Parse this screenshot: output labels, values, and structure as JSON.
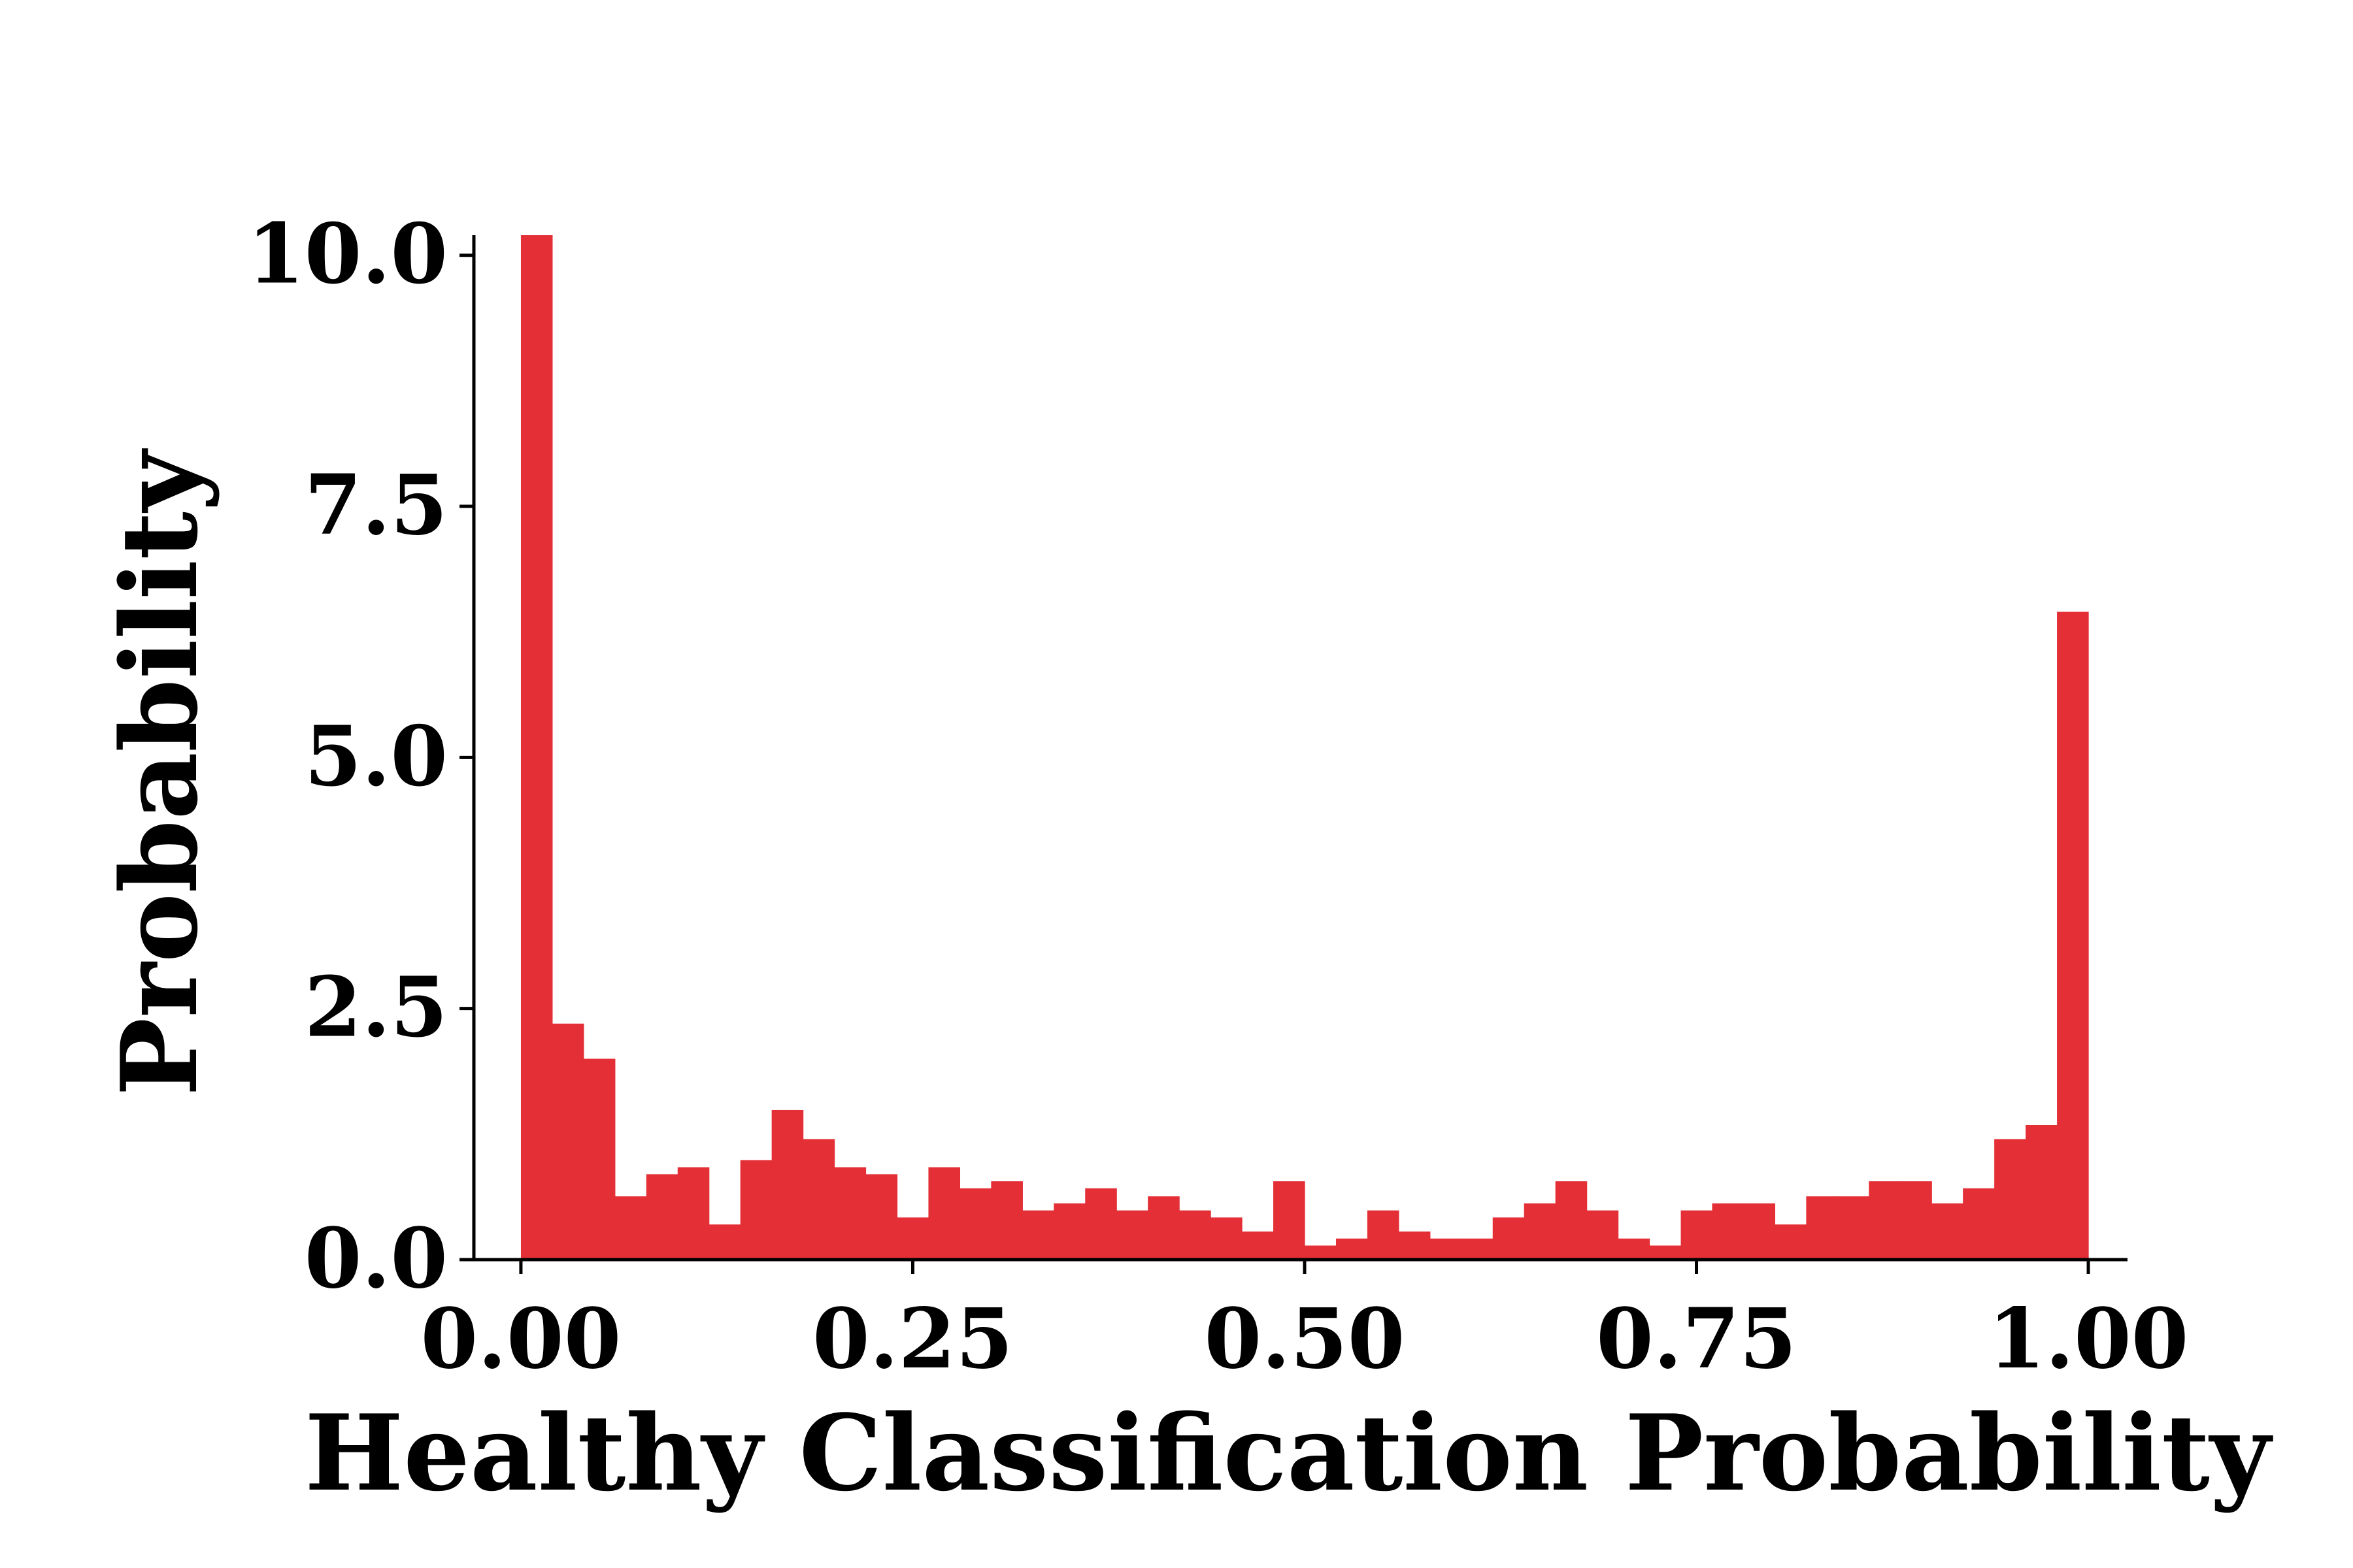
{
  "chart_data": {
    "type": "bar",
    "subtype": "histogram",
    "xlabel": "Healthy Classification Probability",
    "ylabel": "Probability",
    "xlim": [
      -0.03,
      1.025
    ],
    "ylim": [
      0,
      10.2
    ],
    "xticks": [
      0.0,
      0.25,
      0.5,
      0.75,
      1.0
    ],
    "xtick_labels": [
      "0.00",
      "0.25",
      "0.50",
      "0.75",
      "1.00"
    ],
    "yticks": [
      0.0,
      2.5,
      5.0,
      7.5,
      10.0
    ],
    "ytick_labels": [
      "0.0",
      "2.5",
      "5.0",
      "7.5",
      "10.0"
    ],
    "bin_width": 0.02,
    "bin_start": 0.0,
    "values": [
      10.2,
      2.35,
      2.0,
      0.63,
      0.85,
      0.92,
      0.35,
      0.99,
      1.49,
      1.2,
      0.92,
      0.85,
      0.42,
      0.92,
      0.71,
      0.78,
      0.49,
      0.56,
      0.71,
      0.49,
      0.63,
      0.49,
      0.42,
      0.28,
      0.78,
      0.14,
      0.21,
      0.49,
      0.28,
      0.21,
      0.21,
      0.42,
      0.56,
      0.78,
      0.49,
      0.21,
      0.14,
      0.49,
      0.56,
      0.56,
      0.35,
      0.63,
      0.63,
      0.78,
      0.78,
      0.56,
      0.71,
      1.2,
      1.34,
      6.45
    ],
    "bar_color": "#e32f35",
    "grid": false,
    "spines": [
      "left",
      "bottom"
    ]
  }
}
